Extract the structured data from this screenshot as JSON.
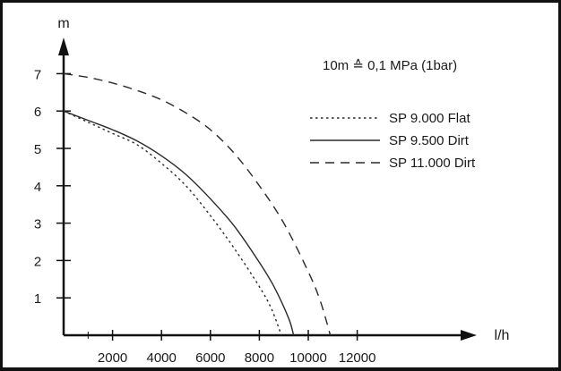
{
  "chart_data": {
    "type": "line",
    "title": "",
    "xlabel": "l/h",
    "ylabel": "m",
    "xlim": [
      0,
      15000
    ],
    "ylim": [
      0,
      8
    ],
    "x_ticks": [
      2000,
      4000,
      6000,
      8000,
      10000,
      12000
    ],
    "y_ticks": [
      1,
      2,
      3,
      4,
      5,
      6,
      7
    ],
    "grid": false,
    "legend_position": "top-right",
    "annotation": "10m ≙ 0,1 MPa (1bar)",
    "series": [
      {
        "name": "SP 9.000 Flat",
        "style": "dotted",
        "x": [
          0,
          1000,
          2000,
          3000,
          4000,
          5000,
          6000,
          7000,
          8000,
          8500,
          8900
        ],
        "y": [
          6.0,
          5.7,
          5.4,
          5.1,
          4.6,
          4.0,
          3.2,
          2.3,
          1.3,
          0.7,
          0.0
        ]
      },
      {
        "name": "SP 9.500 Dirt",
        "style": "solid",
        "x": [
          0,
          1000,
          2000,
          3000,
          4000,
          5000,
          6000,
          7000,
          8000,
          8600,
          9200,
          9400
        ],
        "y": [
          6.0,
          5.75,
          5.5,
          5.2,
          4.8,
          4.3,
          3.65,
          2.9,
          1.95,
          1.3,
          0.45,
          0.0
        ]
      },
      {
        "name": "SP 11.000 Dirt",
        "style": "dashed",
        "x": [
          0,
          1000,
          2000,
          3000,
          4000,
          5000,
          6000,
          7000,
          8000,
          9000,
          10000,
          10500,
          10900
        ],
        "y": [
          7.0,
          6.9,
          6.75,
          6.55,
          6.3,
          5.95,
          5.5,
          4.85,
          4.0,
          3.0,
          1.7,
          0.9,
          0.0
        ]
      }
    ]
  }
}
